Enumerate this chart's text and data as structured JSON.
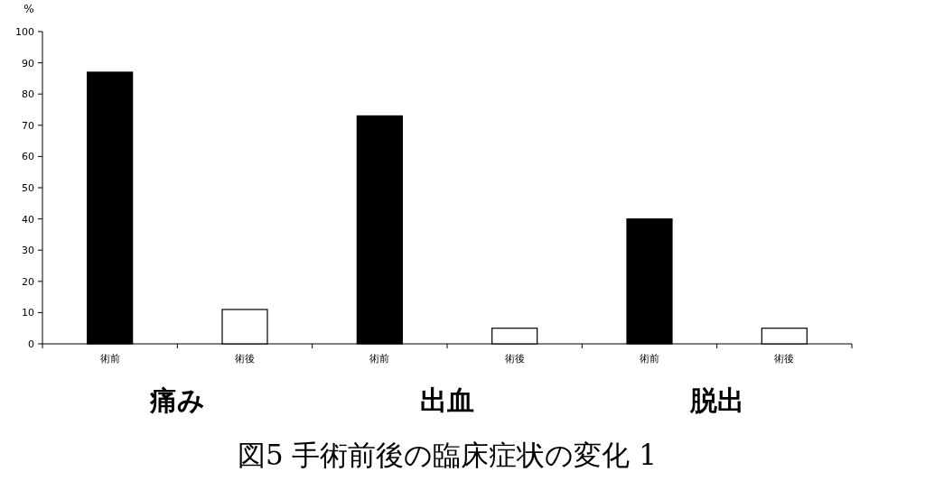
{
  "chart_data": {
    "type": "bar",
    "title": "図5 手術前後の臨床症状の変化 1",
    "ylabel": "%",
    "categories": [
      "術前",
      "術後",
      "術前",
      "術後",
      "術前",
      "術後"
    ],
    "values": [
      87,
      11,
      73,
      5,
      40,
      5
    ],
    "colors": [
      "#000000",
      "#ffffff",
      "#000000",
      "#ffffff",
      "#000000",
      "#ffffff"
    ],
    "ylim": [
      0,
      100
    ],
    "yticks": [
      0,
      10,
      20,
      30,
      40,
      50,
      60,
      70,
      80,
      90,
      100
    ],
    "annotations": [
      "痛み",
      "出血",
      "脱出"
    ],
    "grid": false
  }
}
